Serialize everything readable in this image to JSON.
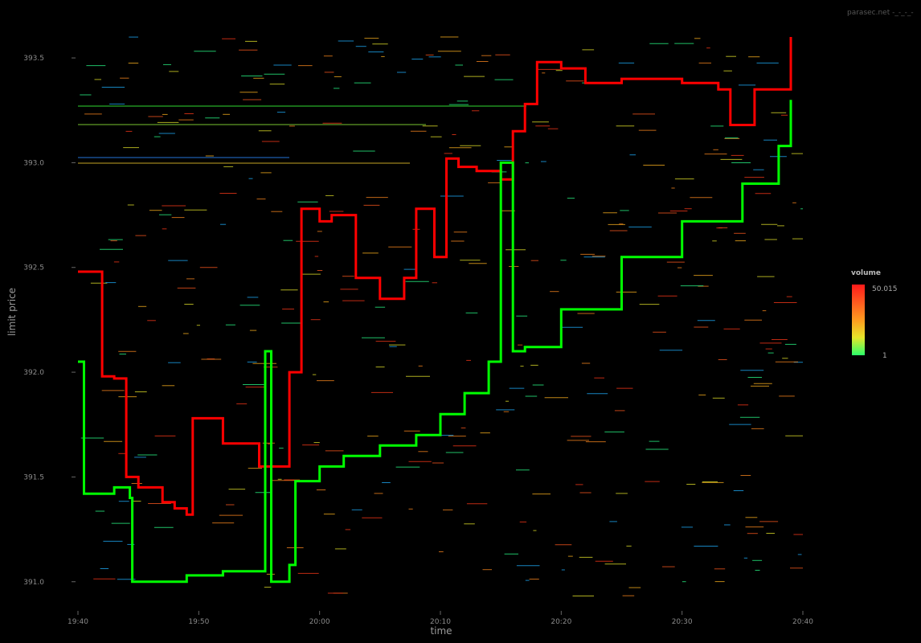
{
  "watermark": "parasec.net -_-_-_-",
  "chart_data": {
    "type": "line",
    "title": "",
    "xlabel": "time",
    "ylabel": "limit price",
    "background": "#000000",
    "grid": false,
    "x_ticks": [
      "19:40",
      "19:50",
      "20:00",
      "20:10",
      "20:20",
      "20:30",
      "20:40"
    ],
    "y_ticks": [
      "391.0",
      "391.5",
      "392.0",
      "392.5",
      "393.0",
      "393.5"
    ],
    "xlim": [
      "19:40",
      "20:40"
    ],
    "ylim": [
      390.93,
      393.6
    ],
    "legend": {
      "title": "volume",
      "position": "right",
      "max_label": "50.015",
      "min_label": "1",
      "gradient_colors": [
        "#ff1a1a",
        "#ff5a1f",
        "#ff9a1f",
        "#e6e62a",
        "#2aff6a"
      ]
    },
    "series": [
      {
        "name": "",
        "color": "#ff0000",
        "x": [
          "19:40",
          "19:41",
          "19:42",
          "19:43",
          "19:44",
          "19:45",
          "19:47",
          "19:48",
          "19:49",
          "19:49.5",
          "19:52",
          "19:55",
          "19:56",
          "19:57.5",
          "19:58.5",
          "20:00",
          "20:01",
          "20:03",
          "20:05",
          "20:07",
          "20:08",
          "20:09.5",
          "20:10.5",
          "20:11.5",
          "20:13",
          "20:15",
          "20:16",
          "20:17",
          "20:18",
          "20:19",
          "20:20",
          "20:22",
          "20:25",
          "20:30",
          "20:33",
          "20:34",
          "20:36",
          "20:38",
          "20:39"
        ],
        "values": [
          392.48,
          392.48,
          391.98,
          391.97,
          391.5,
          391.45,
          391.38,
          391.35,
          391.32,
          391.78,
          391.66,
          391.55,
          391.55,
          392.0,
          392.78,
          392.72,
          392.75,
          392.45,
          392.35,
          392.45,
          392.78,
          392.55,
          393.02,
          392.98,
          392.96,
          392.92,
          393.15,
          393.28,
          393.48,
          393.48,
          393.45,
          393.38,
          393.4,
          393.38,
          393.35,
          393.18,
          393.35,
          393.35,
          393.6
        ]
      },
      {
        "name": "",
        "color": "#00ff00",
        "x": [
          "19:40",
          "19:40.5",
          "19:42",
          "19:43",
          "19:44.3",
          "19:44.5",
          "19:47",
          "19:49",
          "19:52",
          "19:55",
          "19:55.5",
          "19:56",
          "19:57.5",
          "19:58",
          "20:00",
          "20:02",
          "20:05",
          "20:08",
          "20:10",
          "20:12",
          "20:14",
          "20:15",
          "20:16",
          "20:17",
          "20:20",
          "20:25",
          "20:30",
          "20:35",
          "20:38",
          "20:39"
        ],
        "values": [
          392.05,
          391.42,
          391.42,
          391.45,
          391.4,
          391.0,
          391.0,
          391.03,
          391.05,
          391.05,
          392.1,
          391.0,
          391.08,
          391.48,
          391.55,
          391.6,
          391.65,
          391.7,
          391.8,
          391.9,
          392.05,
          393.0,
          392.1,
          392.12,
          392.3,
          392.55,
          392.72,
          392.9,
          393.08,
          393.3
        ]
      }
    ]
  }
}
